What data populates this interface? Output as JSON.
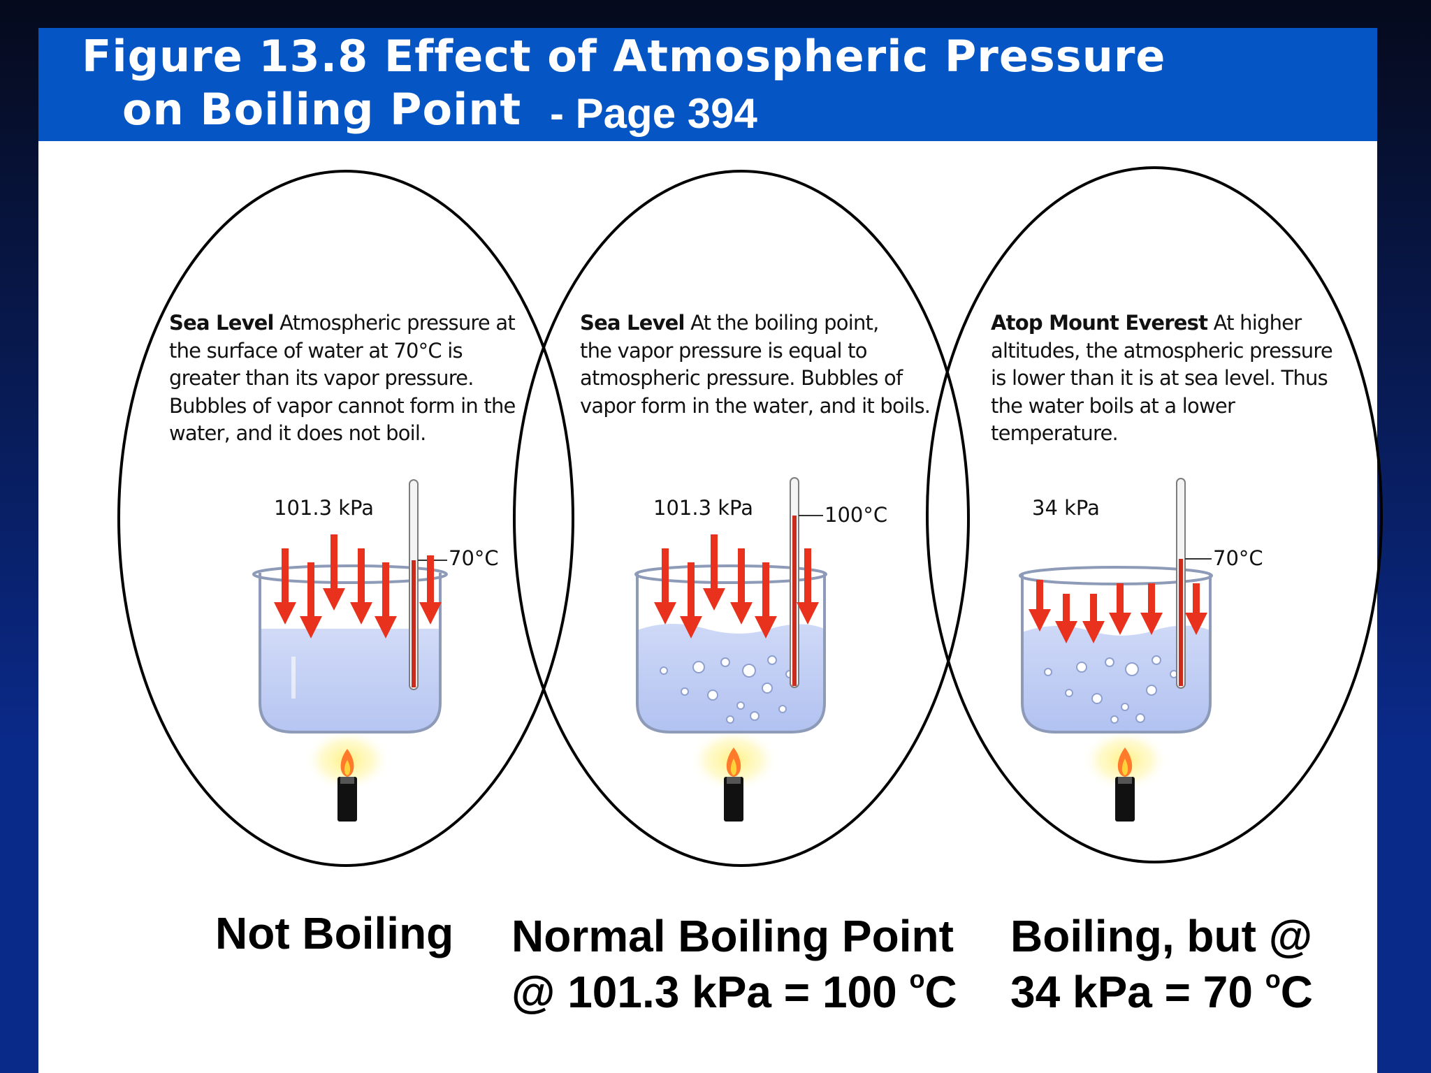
{
  "header": {
    "title_line1": "Figure 13.8 Effect of Atmospheric Pressure",
    "title_line2": "on Boiling Point",
    "page_ref": "- Page 394"
  },
  "panels": [
    {
      "heading": "Sea Level",
      "description_lines": [
        "Atmospheric pressure at",
        "the surface of water at 70°C is",
        "greater than its vapor pressure.",
        "Bubbles of vapor cannot form in the",
        "water, and it does not boil."
      ],
      "pressure": "101.3 kPa",
      "temperature": "70°C"
    },
    {
      "heading": "Sea Level",
      "description_lines": [
        "At the boiling point,",
        "the vapor pressure is equal to",
        "atmospheric pressure. Bubbles of",
        "vapor form in the water, and it boils."
      ],
      "pressure": "101.3 kPa",
      "temperature": "100°C"
    },
    {
      "heading": "Atop Mount Everest",
      "description_lines": [
        "At higher",
        "altitudes, the atmospheric pressure",
        "is lower than it is at sea level. Thus",
        "the water boils at a lower",
        "temperature."
      ],
      "pressure": "34 kPa",
      "temperature": "70°C"
    }
  ],
  "captions": {
    "not_boiling": "Not Boiling",
    "normal_line1": "Normal Boiling Point",
    "normal_line2_prefix": "@ 101.3 kPa = 100 ",
    "boiling_line1": "Boiling, but @",
    "boiling_line2_prefix": "34 kPa = 70 ",
    "degree_sup": "o",
    "unit": "C"
  },
  "colors": {
    "header_blue": "#0556c4",
    "arrow_red": "#e8321e",
    "water_blue": "#b9c8f2",
    "flame_yellow": "#ffe766"
  }
}
